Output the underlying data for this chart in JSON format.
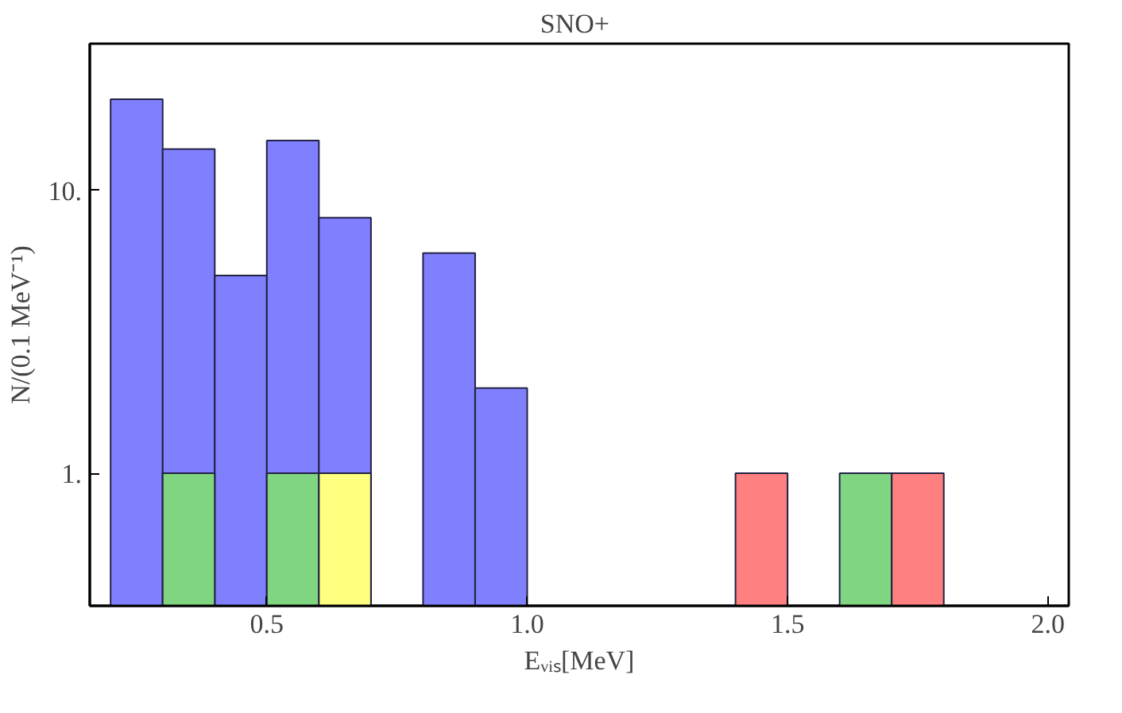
{
  "chart_data": {
    "type": "histogram",
    "xlabel": "Eᵥᵢₛ[MeV]",
    "ylabel": "N/(0.1 MeV⁻¹)",
    "bins": [
      0.2,
      0.3,
      0.4,
      0.5,
      0.6,
      0.7,
      0.8,
      0.9,
      1.0,
      1.1,
      1.2,
      1.3,
      1.4,
      1.5,
      1.6,
      1.7,
      1.8
    ],
    "series": [
      {
        "color": "#8080ff",
        "values": [
          21,
          14,
          5,
          15,
          8,
          null,
          6,
          2,
          null,
          null,
          null,
          null,
          null,
          null,
          null,
          null
        ]
      },
      {
        "color": "#80d580",
        "values": [
          null,
          1,
          null,
          1,
          null,
          null,
          null,
          null,
          null,
          null,
          null,
          null,
          null,
          null,
          1,
          null
        ]
      },
      {
        "color": "#ffff80",
        "values": [
          null,
          null,
          null,
          null,
          1,
          null,
          null,
          null,
          null,
          null,
          null,
          null,
          null,
          null,
          null,
          null
        ]
      },
      {
        "color": "#ff8080",
        "values": [
          null,
          null,
          null,
          null,
          null,
          null,
          null,
          null,
          null,
          null,
          null,
          null,
          1,
          null,
          null,
          1
        ]
      }
    ],
    "log": "y",
    "xlim": [
      0.16,
      2.04
    ],
    "ylim": [
      0.34,
      33
    ],
    "xticks": [
      0.5,
      {
        "value": 1.0,
        "label": "1.0"
      },
      1.5,
      {
        "value": 2.0,
        "label": "2.0"
      }
    ],
    "yticks": [
      {
        "value": 1,
        "label": "1."
      },
      {
        "value": 10,
        "label": "10."
      }
    ],
    "grid": false,
    "annotations": [
      "SNO+"
    ]
  }
}
